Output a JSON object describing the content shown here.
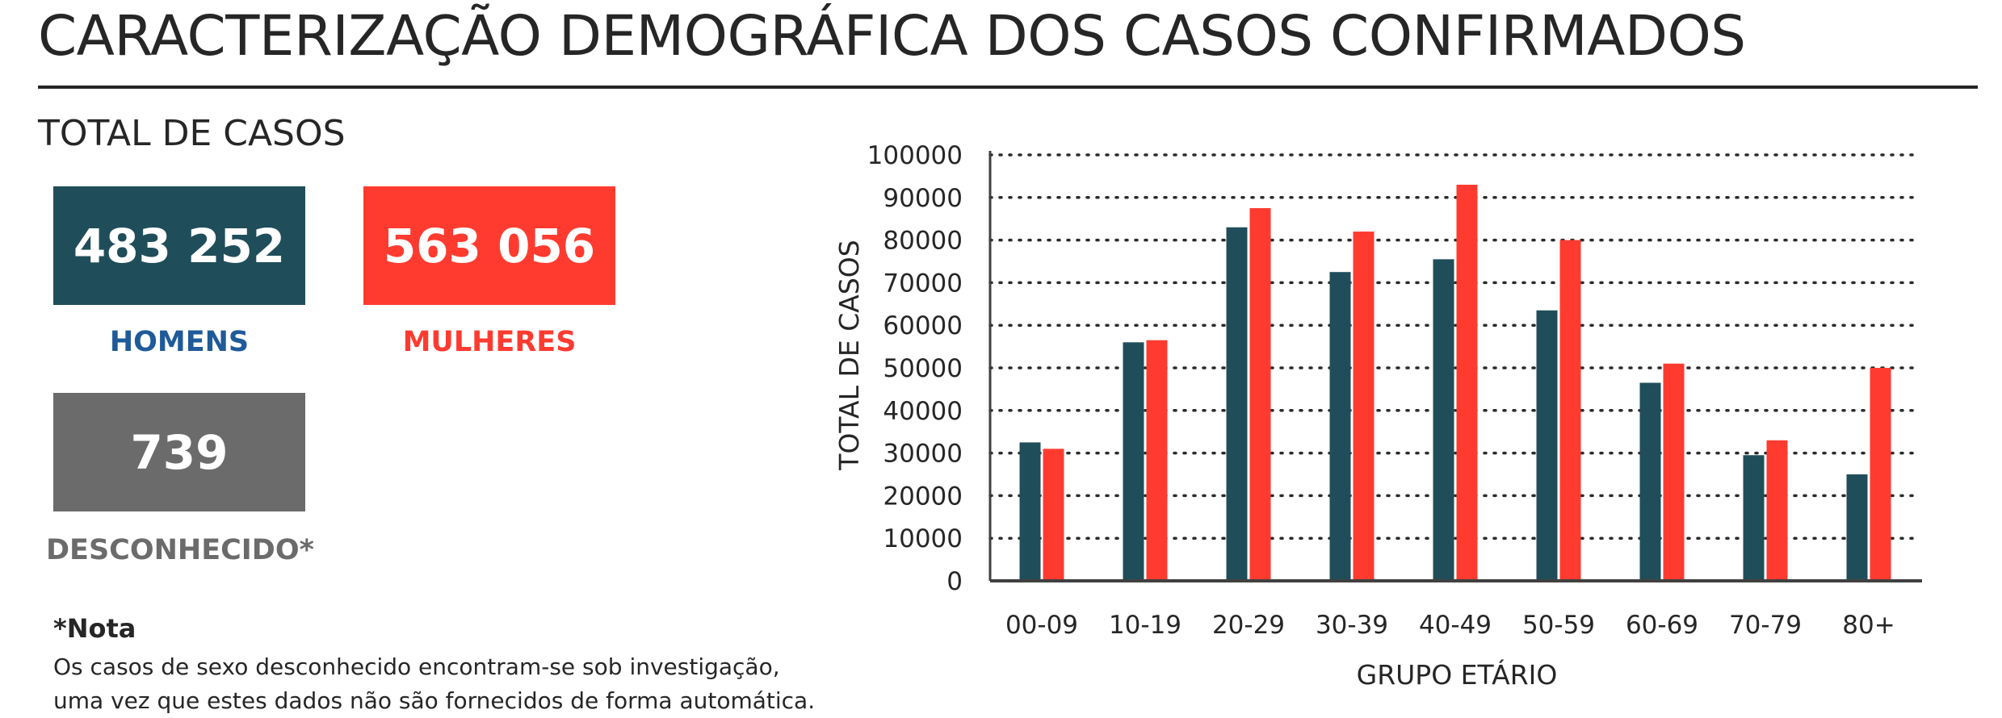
{
  "header": {
    "title": "CARACTERIZAÇÃO DEMOGRÁFICA DOS CASOS CONFIRMADOS"
  },
  "totals": {
    "section_title": "TOTAL DE CASOS",
    "men": {
      "value": "483 252",
      "label": "HOMENS"
    },
    "women": {
      "value": "563 056",
      "label": "MULHERES"
    },
    "unknown": {
      "value": "739",
      "label": "DESCONHECIDO*"
    }
  },
  "note": {
    "title": "*Nota",
    "line1": "Os casos de sexo desconhecido encontram-se sob investigação,",
    "line2": "uma vez que estes dados não são fornecidos de forma automática."
  },
  "colors": {
    "men": "#1f4e5a",
    "women": "#ff3b30",
    "unknown": "#6b6b6b",
    "men_label": "#1f5a99"
  },
  "chart_data": {
    "type": "bar",
    "categories": [
      "00-09",
      "10-19",
      "20-29",
      "30-39",
      "40-49",
      "50-59",
      "60-69",
      "70-79",
      "80+"
    ],
    "series": [
      {
        "values": [
          32500,
          56000,
          83000,
          72500,
          75500,
          63500,
          46500,
          29500,
          25000
        ]
      },
      {
        "values": [
          31000,
          56500,
          87500,
          82000,
          93000,
          80000,
          51000,
          33000,
          50000
        ]
      }
    ],
    "xlabel": "GRUPO ETÁRIO",
    "ylabel": "TOTAL DE CASOS",
    "ylim": [
      0,
      100000
    ],
    "yticks": [
      0,
      10000,
      20000,
      30000,
      40000,
      50000,
      60000,
      70000,
      80000,
      90000,
      100000
    ],
    "grid": true,
    "legend": "none"
  }
}
